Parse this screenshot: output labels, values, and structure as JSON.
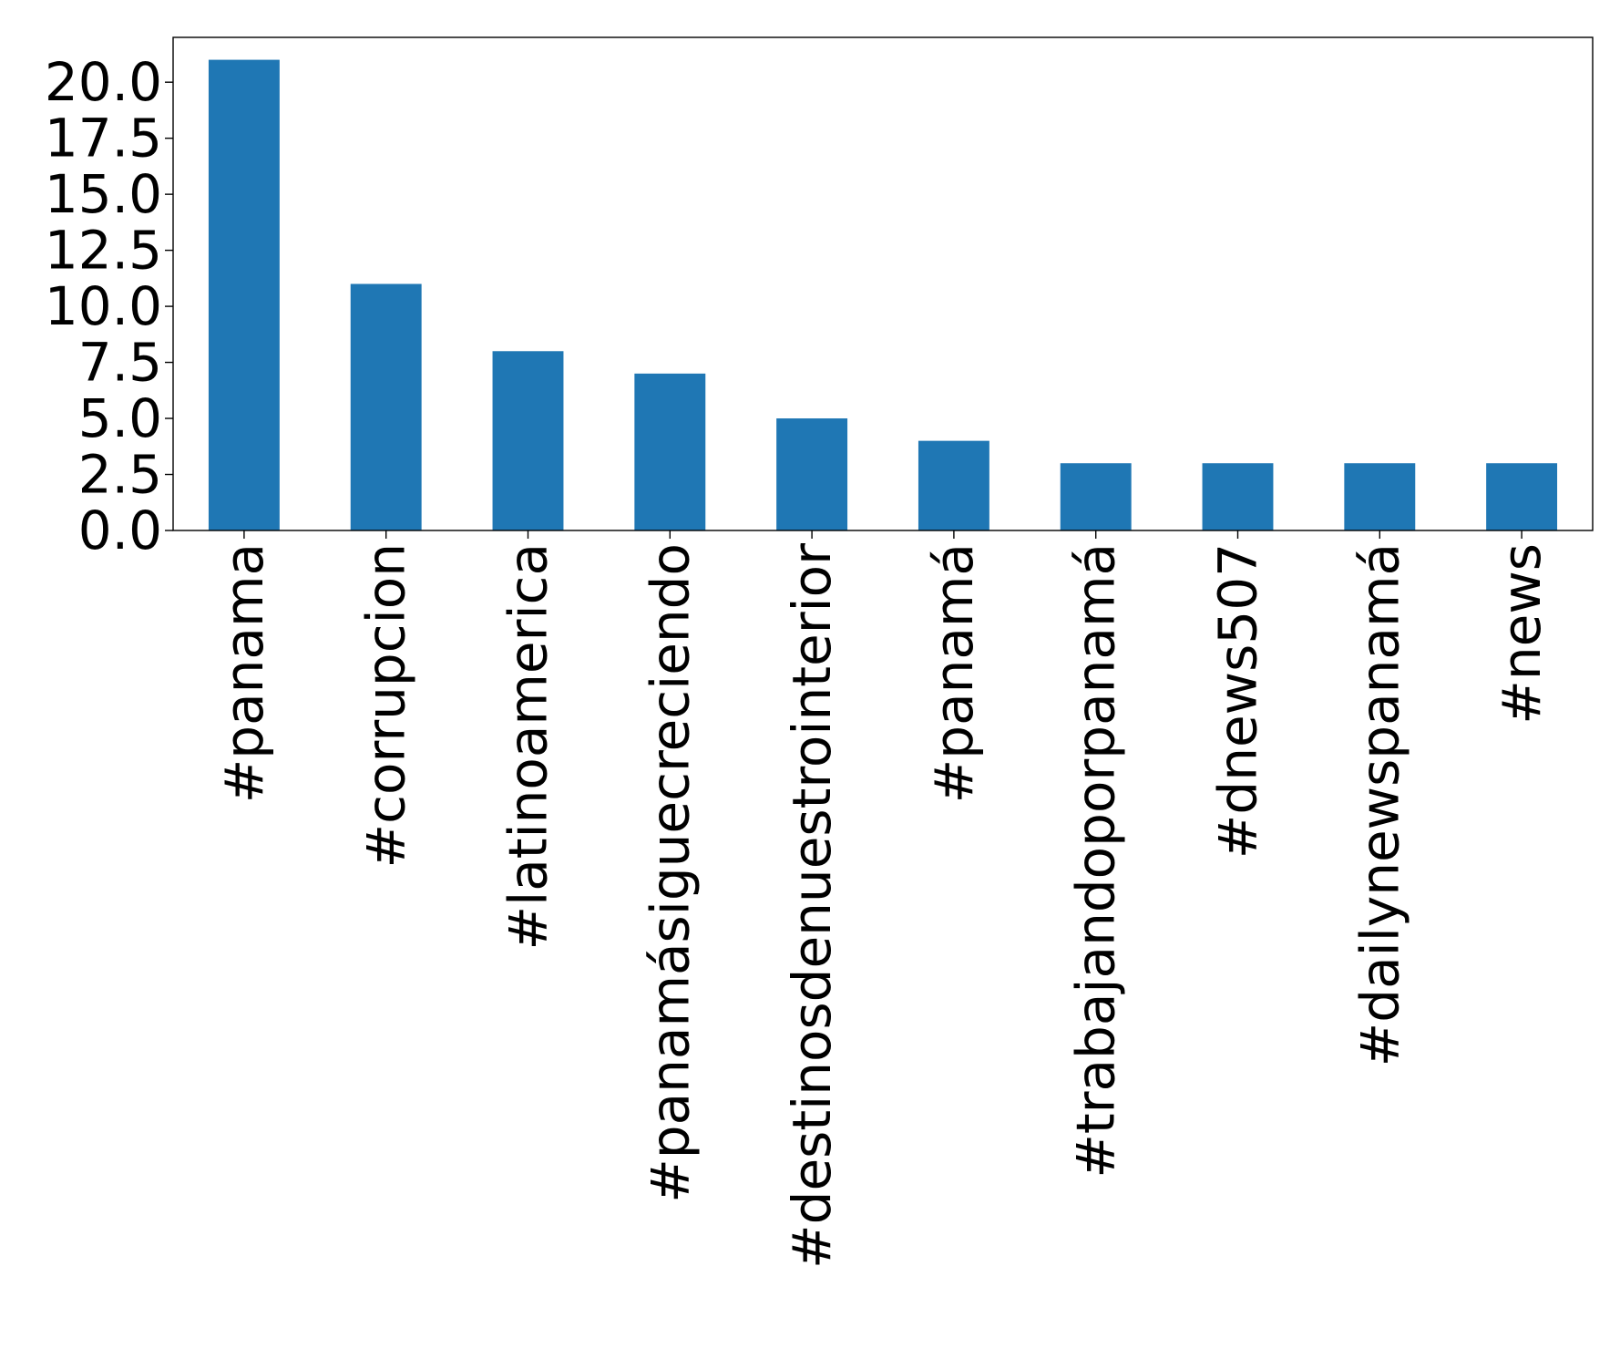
{
  "chart_data": {
    "type": "bar",
    "title": "",
    "xlabel": "",
    "ylabel": "",
    "categories": [
      "#panama",
      "#corrupcion",
      "#latinoamerica",
      "#panamásiguecreciendo",
      "#destinosdenuestrointerior",
      "#panamá",
      "#trabajandoporpanamá",
      "#dnews507",
      "#dailynewspanamá",
      "#news"
    ],
    "values": [
      21,
      11,
      8,
      7,
      5,
      4,
      3,
      3,
      3,
      3
    ],
    "ylim": [
      0,
      22
    ],
    "yticks": [
      0.0,
      2.5,
      5.0,
      7.5,
      10.0,
      12.5,
      15.0,
      17.5,
      20.0
    ],
    "ytick_labels": [
      "0.0",
      "2.5",
      "5.0",
      "7.5",
      "10.0",
      "12.5",
      "15.0",
      "17.5",
      "20.0"
    ],
    "grid": false,
    "bar_color": "#1f77b4"
  }
}
